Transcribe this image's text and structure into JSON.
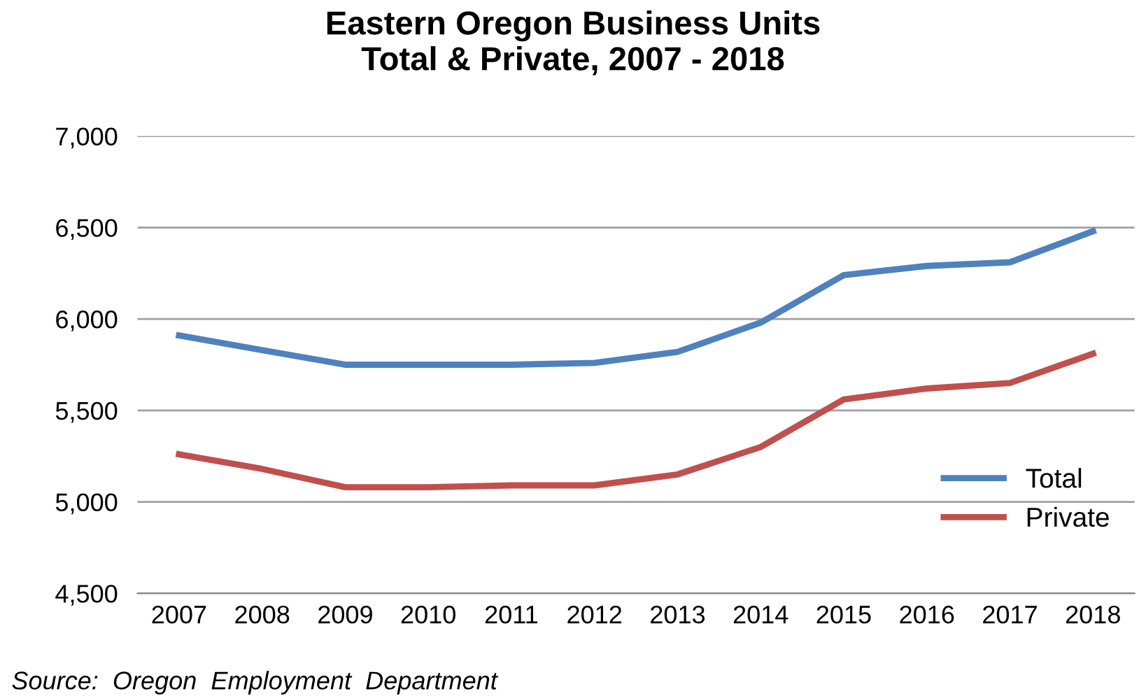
{
  "chart_data": {
    "type": "line",
    "title": "Eastern Oregon Business Units\nTotal & Private, 2007 - 2018",
    "categories": [
      "2007",
      "2008",
      "2009",
      "2010",
      "2011",
      "2012",
      "2013",
      "2014",
      "2015",
      "2016",
      "2017",
      "2018"
    ],
    "series": [
      {
        "name": "Total",
        "color": "#4f81bd",
        "values": [
          5910,
          5830,
          5750,
          5750,
          5750,
          5760,
          5820,
          5980,
          6240,
          6290,
          6310,
          6480
        ]
      },
      {
        "name": "Private",
        "color": "#c0504d",
        "values": [
          5260,
          5180,
          5080,
          5080,
          5090,
          5090,
          5150,
          5300,
          5560,
          5620,
          5650,
          5810
        ]
      }
    ],
    "ylim": [
      4500,
      7000
    ],
    "yticks": [
      {
        "value": 4500,
        "label": "4,500"
      },
      {
        "value": 5000,
        "label": "5,000"
      },
      {
        "value": 5500,
        "label": "5,500"
      },
      {
        "value": 6000,
        "label": "6,000"
      },
      {
        "value": 6500,
        "label": "6,500"
      },
      {
        "value": 7000,
        "label": "7,000"
      }
    ],
    "grid": "y",
    "legend": "bottom right",
    "marker": "none",
    "line_style": "solid",
    "annotations": [
      "Source:  Oregon  Employment  Department"
    ]
  }
}
